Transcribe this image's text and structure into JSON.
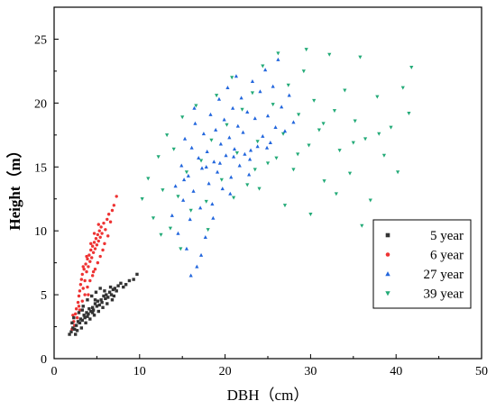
{
  "chart_data": {
    "type": "scatter",
    "title": "",
    "xlabel": "DBH（cm）",
    "ylabel": "Height（m）",
    "xlim": [
      0,
      50
    ],
    "ylim": [
      0,
      27.5
    ],
    "xticks": [
      "0",
      "10",
      "20",
      "30",
      "40",
      "50"
    ],
    "yticks": [
      "0",
      "5",
      "10",
      "15",
      "20",
      "25"
    ],
    "grid": false,
    "legend_position": "lower-right",
    "series": [
      {
        "name": "5 year",
        "marker": "square",
        "color": "#333333",
        "points": [
          [
            1.8,
            1.9
          ],
          [
            2.0,
            2.1
          ],
          [
            2.2,
            2.4
          ],
          [
            2.4,
            2.3
          ],
          [
            2.6,
            2.6
          ],
          [
            2.8,
            2.9
          ],
          [
            3.0,
            2.8
          ],
          [
            3.1,
            3.1
          ],
          [
            3.3,
            3.0
          ],
          [
            3.5,
            3.4
          ],
          [
            3.6,
            3.2
          ],
          [
            3.8,
            3.6
          ],
          [
            4.0,
            3.5
          ],
          [
            4.1,
            3.9
          ],
          [
            4.3,
            3.7
          ],
          [
            4.5,
            4.0
          ],
          [
            4.6,
            3.8
          ],
          [
            4.8,
            4.3
          ],
          [
            5.0,
            4.1
          ],
          [
            5.1,
            4.5
          ],
          [
            5.3,
            4.2
          ],
          [
            5.5,
            4.6
          ],
          [
            5.6,
            4.4
          ],
          [
            5.8,
            4.9
          ],
          [
            6.0,
            4.7
          ],
          [
            6.1,
            5.0
          ],
          [
            6.3,
            4.8
          ],
          [
            6.5,
            5.2
          ],
          [
            6.7,
            5.0
          ],
          [
            6.9,
            5.4
          ],
          [
            7.1,
            5.5
          ],
          [
            7.3,
            5.3
          ],
          [
            7.5,
            5.7
          ],
          [
            7.8,
            5.9
          ],
          [
            8.1,
            5.6
          ],
          [
            8.4,
            5.8
          ],
          [
            8.8,
            6.1
          ],
          [
            9.3,
            6.2
          ],
          [
            9.7,
            6.6
          ],
          [
            2.3,
            3.2
          ],
          [
            2.9,
            3.6
          ],
          [
            3.4,
            4.1
          ],
          [
            3.9,
            4.6
          ],
          [
            4.4,
            4.9
          ],
          [
            4.9,
            5.2
          ],
          [
            5.4,
            5.5
          ],
          [
            2.5,
            1.9
          ],
          [
            3.2,
            2.4
          ],
          [
            3.7,
            2.8
          ],
          [
            4.2,
            3.1
          ],
          [
            4.7,
            3.4
          ],
          [
            5.2,
            3.7
          ],
          [
            5.7,
            4.0
          ],
          [
            6.2,
            4.3
          ],
          [
            6.8,
            4.6
          ],
          [
            2.1,
            2.8
          ],
          [
            2.7,
            2.2
          ],
          [
            3.9,
            3.3
          ],
          [
            4.5,
            3.6
          ],
          [
            5.9,
            5.3
          ],
          [
            6.6,
            5.6
          ],
          [
            7.0,
            4.9
          ],
          [
            3.3,
            3.8
          ],
          [
            4.8,
            4.6
          ]
        ]
      },
      {
        "name": "6 year",
        "marker": "circle",
        "color": "#ee3333",
        "points": [
          [
            2.1,
            2.3
          ],
          [
            2.3,
            2.9
          ],
          [
            2.5,
            3.5
          ],
          [
            2.6,
            3.9
          ],
          [
            2.8,
            4.4
          ],
          [
            2.9,
            4.9
          ],
          [
            3.0,
            5.3
          ],
          [
            3.1,
            5.8
          ],
          [
            3.2,
            6.2
          ],
          [
            3.3,
            6.6
          ],
          [
            3.4,
            5.5
          ],
          [
            3.5,
            7.0
          ],
          [
            3.6,
            6.1
          ],
          [
            3.7,
            7.4
          ],
          [
            3.8,
            6.8
          ],
          [
            3.9,
            7.8
          ],
          [
            4.0,
            7.2
          ],
          [
            4.1,
            8.1
          ],
          [
            4.2,
            7.6
          ],
          [
            4.3,
            8.5
          ],
          [
            4.4,
            7.9
          ],
          [
            4.5,
            8.8
          ],
          [
            4.6,
            8.3
          ],
          [
            4.7,
            9.1
          ],
          [
            4.8,
            8.6
          ],
          [
            4.9,
            9.4
          ],
          [
            5.0,
            8.9
          ],
          [
            5.1,
            9.7
          ],
          [
            5.2,
            9.2
          ],
          [
            5.3,
            10.0
          ],
          [
            5.4,
            9.5
          ],
          [
            5.5,
            10.3
          ],
          [
            5.6,
            9.8
          ],
          [
            5.8,
            10.6
          ],
          [
            6.0,
            10.1
          ],
          [
            6.2,
            10.9
          ],
          [
            6.4,
            11.3
          ],
          [
            6.6,
            10.7
          ],
          [
            6.8,
            11.6
          ],
          [
            7.0,
            12.0
          ],
          [
            7.3,
            12.7
          ],
          [
            2.4,
            2.6
          ],
          [
            2.7,
            3.2
          ],
          [
            3.0,
            3.8
          ],
          [
            3.3,
            4.5
          ],
          [
            3.6,
            5.0
          ],
          [
            3.9,
            5.6
          ],
          [
            4.2,
            6.1
          ],
          [
            4.5,
            6.5
          ],
          [
            4.8,
            7.0
          ],
          [
            5.1,
            7.5
          ],
          [
            5.4,
            8.0
          ],
          [
            5.7,
            8.5
          ],
          [
            2.2,
            3.4
          ],
          [
            2.9,
            4.1
          ],
          [
            3.4,
            7.2
          ],
          [
            3.8,
            8.0
          ],
          [
            4.3,
            9.0
          ],
          [
            4.7,
            9.8
          ],
          [
            5.2,
            10.5
          ],
          [
            4.0,
            5.0
          ],
          [
            4.6,
            6.8
          ],
          [
            5.9,
            9.0
          ],
          [
            6.3,
            9.6
          ]
        ]
      },
      {
        "name": "27 year",
        "marker": "triangle-up",
        "color": "#2266dd",
        "points": [
          [
            13.8,
            11.2
          ],
          [
            14.2,
            13.5
          ],
          [
            14.5,
            9.8
          ],
          [
            14.9,
            15.1
          ],
          [
            15.1,
            12.4
          ],
          [
            15.3,
            17.2
          ],
          [
            15.5,
            8.6
          ],
          [
            15.7,
            14.3
          ],
          [
            15.9,
            10.9
          ],
          [
            16.1,
            16.5
          ],
          [
            16.3,
            13.1
          ],
          [
            16.5,
            18.4
          ],
          [
            16.7,
            7.2
          ],
          [
            16.9,
            15.7
          ],
          [
            17.1,
            11.8
          ],
          [
            17.3,
            14.9
          ],
          [
            17.5,
            17.6
          ],
          [
            17.7,
            9.5
          ],
          [
            17.9,
            16.2
          ],
          [
            18.1,
            13.7
          ],
          [
            18.3,
            19.1
          ],
          [
            18.5,
            12.1
          ],
          [
            18.7,
            15.4
          ],
          [
            18.9,
            17.9
          ],
          [
            19.1,
            14.6
          ],
          [
            19.3,
            20.3
          ],
          [
            19.5,
            16.8
          ],
          [
            19.7,
            13.3
          ],
          [
            19.9,
            18.7
          ],
          [
            20.1,
            15.9
          ],
          [
            20.3,
            21.2
          ],
          [
            20.5,
            17.3
          ],
          [
            20.7,
            14.2
          ],
          [
            20.9,
            19.6
          ],
          [
            21.1,
            16.4
          ],
          [
            21.3,
            22.1
          ],
          [
            21.5,
            18.2
          ],
          [
            21.7,
            15.1
          ],
          [
            21.9,
            20.4
          ],
          [
            22.1,
            17.7
          ],
          [
            22.3,
            16.0
          ],
          [
            22.6,
            19.3
          ],
          [
            22.9,
            15.6
          ],
          [
            23.2,
            21.7
          ],
          [
            23.5,
            18.8
          ],
          [
            23.8,
            16.6
          ],
          [
            24.1,
            20.9
          ],
          [
            24.4,
            17.4
          ],
          [
            24.7,
            22.6
          ],
          [
            25.0,
            19.0
          ],
          [
            25.3,
            16.9
          ],
          [
            25.6,
            21.3
          ],
          [
            25.9,
            18.1
          ],
          [
            26.2,
            23.4
          ],
          [
            26.6,
            19.7
          ],
          [
            27.0,
            17.8
          ],
          [
            27.5,
            20.6
          ],
          [
            28.0,
            18.5
          ],
          [
            16.0,
            6.5
          ],
          [
            17.2,
            8.1
          ],
          [
            16.4,
            19.6
          ],
          [
            18.6,
            11.0
          ],
          [
            20.6,
            12.9
          ],
          [
            22.8,
            14.4
          ],
          [
            15.2,
            14.0
          ],
          [
            17.8,
            15.0
          ],
          [
            19.4,
            15.3
          ],
          [
            21.0,
            15.8
          ],
          [
            23.0,
            16.3
          ],
          [
            24.9,
            16.5
          ]
        ]
      },
      {
        "name": "39 year",
        "marker": "triangle-down",
        "color": "#22aa77",
        "points": [
          [
            10.3,
            12.5
          ],
          [
            11.0,
            14.1
          ],
          [
            11.6,
            11.0
          ],
          [
            12.2,
            15.8
          ],
          [
            12.7,
            13.2
          ],
          [
            13.2,
            17.5
          ],
          [
            13.6,
            10.2
          ],
          [
            14.0,
            16.4
          ],
          [
            14.5,
            12.7
          ],
          [
            15.0,
            18.9
          ],
          [
            15.5,
            14.6
          ],
          [
            16.0,
            11.6
          ],
          [
            16.6,
            19.8
          ],
          [
            17.2,
            15.5
          ],
          [
            17.8,
            12.3
          ],
          [
            18.4,
            17.1
          ],
          [
            19.0,
            20.6
          ],
          [
            19.6,
            14.0
          ],
          [
            20.2,
            18.3
          ],
          [
            20.8,
            22.0
          ],
          [
            21.4,
            16.1
          ],
          [
            22.0,
            19.5
          ],
          [
            22.6,
            13.6
          ],
          [
            23.2,
            20.8
          ],
          [
            23.8,
            17.0
          ],
          [
            24.4,
            22.9
          ],
          [
            25.0,
            15.3
          ],
          [
            25.6,
            19.9
          ],
          [
            26.2,
            23.9
          ],
          [
            26.8,
            17.6
          ],
          [
            27.4,
            21.4
          ],
          [
            28.0,
            14.8
          ],
          [
            28.6,
            19.1
          ],
          [
            29.2,
            22.5
          ],
          [
            29.8,
            16.7
          ],
          [
            30.4,
            20.2
          ],
          [
            31.0,
            17.9
          ],
          [
            31.6,
            13.9
          ],
          [
            32.2,
            23.8
          ],
          [
            32.8,
            19.4
          ],
          [
            33.4,
            16.3
          ],
          [
            34.0,
            21.0
          ],
          [
            34.6,
            14.5
          ],
          [
            35.2,
            18.6
          ],
          [
            35.8,
            23.6
          ],
          [
            36.4,
            17.2
          ],
          [
            37.0,
            12.4
          ],
          [
            37.8,
            20.5
          ],
          [
            38.6,
            15.9
          ],
          [
            39.4,
            18.1
          ],
          [
            40.2,
            14.6
          ],
          [
            40.8,
            21.2
          ],
          [
            41.5,
            19.2
          ],
          [
            41.8,
            22.8
          ],
          [
            30.0,
            11.3
          ],
          [
            33.0,
            12.9
          ],
          [
            36.0,
            10.4
          ],
          [
            27.0,
            12.0
          ],
          [
            24.0,
            13.3
          ],
          [
            21.0,
            12.6
          ],
          [
            18.0,
            10.1
          ],
          [
            14.8,
            8.6
          ],
          [
            12.5,
            9.7
          ],
          [
            28.5,
            16.0
          ],
          [
            31.5,
            18.4
          ],
          [
            26.0,
            15.7
          ],
          [
            23.5,
            14.8
          ],
          [
            35.0,
            16.9
          ],
          [
            38.0,
            17.6
          ],
          [
            29.5,
            24.2
          ]
        ]
      }
    ]
  },
  "colors": {
    "axis": "#000000",
    "background": "#ffffff"
  }
}
